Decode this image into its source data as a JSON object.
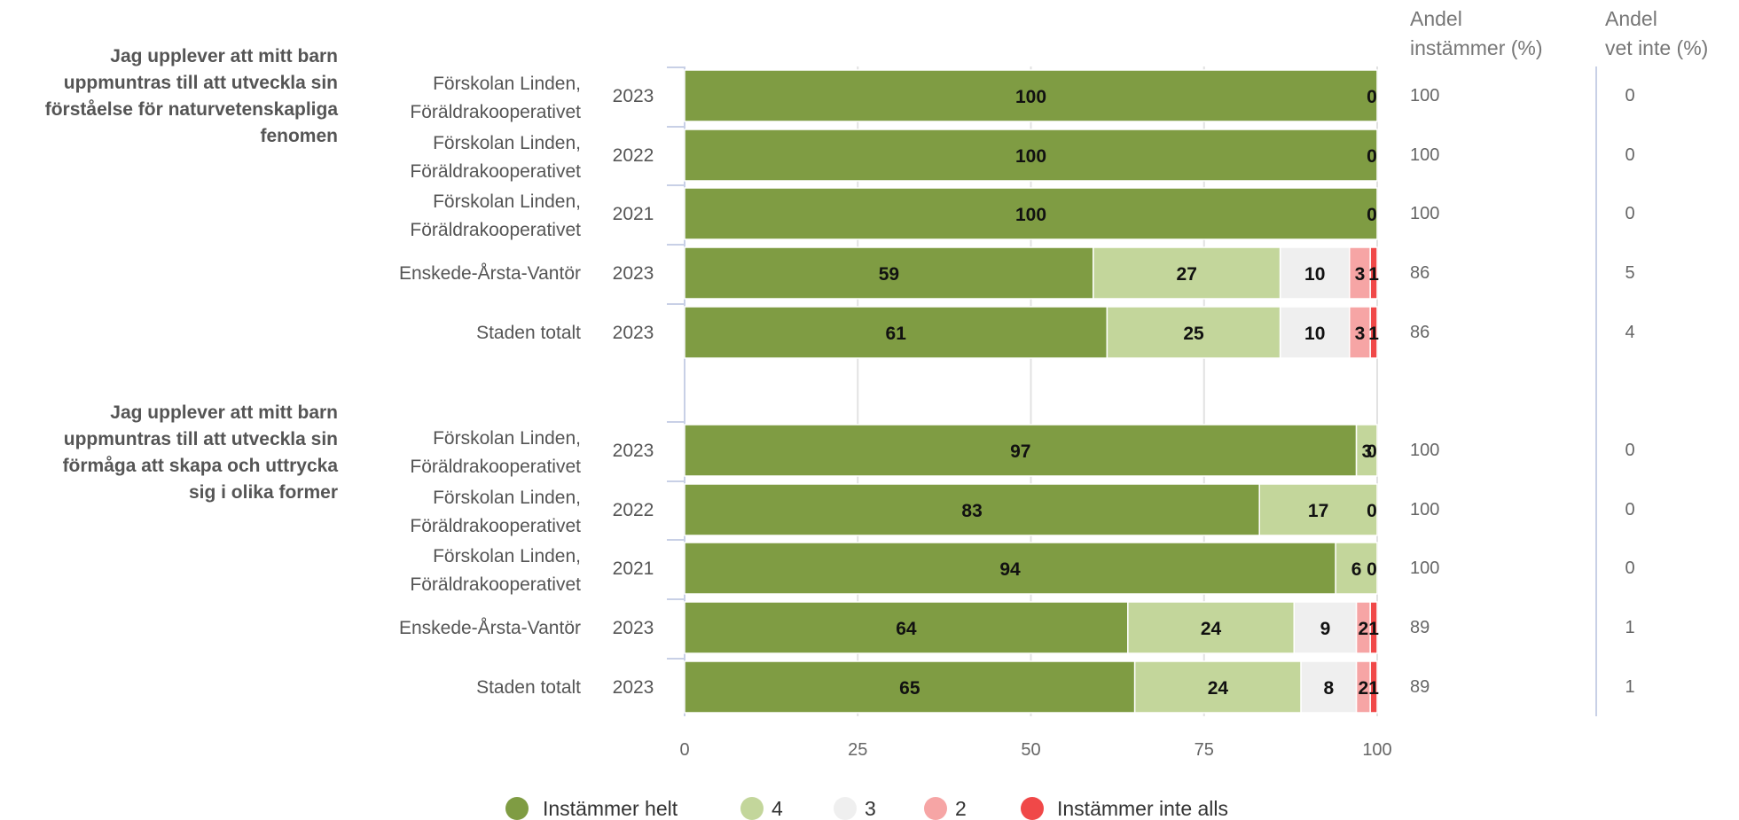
{
  "headers": {
    "agree_line1": "Andel",
    "agree_line2": "instämmer (%)",
    "dontknow_line1": "Andel",
    "dontknow_line2": "vet inte (%)"
  },
  "chart_data": {
    "type": "bar",
    "orientation": "horizontal-stacked",
    "xlim": [
      0,
      100
    ],
    "xticks": [
      0,
      25,
      50,
      75,
      100
    ],
    "grid": true,
    "legend_position": "bottom",
    "series": [
      {
        "name": "Instämmer helt",
        "color": "#7f9c43"
      },
      {
        "name": "4",
        "color": "#c3d69b"
      },
      {
        "name": "3",
        "color": "#efefef"
      },
      {
        "name": "2",
        "color": "#f6a5a5"
      },
      {
        "name": "Instämmer inte alls",
        "color": "#f04848"
      }
    ],
    "groups": [
      {
        "question": [
          "Jag upplever att mitt barn",
          "uppmuntras till att utveckla sin",
          "förståelse för naturvetenskapliga",
          "fenomen"
        ],
        "rows": [
          {
            "label": [
              "Förskolan Linden,",
              "Föräldrakooperativet"
            ],
            "year": "2023",
            "values": [
              100,
              0,
              0,
              0,
              0
            ],
            "labels": [
              "100",
              "",
              "",
              "",
              "0"
            ],
            "agree": "100",
            "dont_know": "0"
          },
          {
            "label": [
              "Förskolan Linden,",
              "Föräldrakooperativet"
            ],
            "year": "2022",
            "values": [
              100,
              0,
              0,
              0,
              0
            ],
            "labels": [
              "100",
              "",
              "",
              "",
              "0"
            ],
            "agree": "100",
            "dont_know": "0"
          },
          {
            "label": [
              "Förskolan Linden,",
              "Föräldrakooperativet"
            ],
            "year": "2021",
            "values": [
              100,
              0,
              0,
              0,
              0
            ],
            "labels": [
              "100",
              "",
              "",
              "",
              "0"
            ],
            "agree": "100",
            "dont_know": "0"
          },
          {
            "label": [
              "Enskede-Årsta-Vantör"
            ],
            "year": "2023",
            "values": [
              59,
              27,
              10,
              3,
              1
            ],
            "labels": [
              "59",
              "27",
              "10",
              "3",
              "1"
            ],
            "agree": "86",
            "dont_know": "5"
          },
          {
            "label": [
              "Staden totalt"
            ],
            "year": "2023",
            "values": [
              61,
              25,
              10,
              3,
              1
            ],
            "labels": [
              "61",
              "25",
              "10",
              "3",
              "1"
            ],
            "agree": "86",
            "dont_know": "4"
          }
        ]
      },
      {
        "question": [
          "Jag upplever att mitt barn",
          "uppmuntras till att utveckla sin",
          "förmåga att skapa och uttrycka",
          "sig i olika former"
        ],
        "rows": [
          {
            "label": [
              "Förskolan Linden,",
              "Föräldrakooperativet"
            ],
            "year": "2023",
            "values": [
              97,
              3,
              0,
              0,
              0
            ],
            "labels": [
              "97",
              "3",
              "0",
              "",
              ""
            ],
            "agree": "100",
            "dont_know": "0"
          },
          {
            "label": [
              "Förskolan Linden,",
              "Föräldrakooperativet"
            ],
            "year": "2022",
            "values": [
              83,
              17,
              0,
              0,
              0
            ],
            "labels": [
              "83",
              "17",
              "0",
              "",
              ""
            ],
            "agree": "100",
            "dont_know": "0"
          },
          {
            "label": [
              "Förskolan Linden,",
              "Föräldrakooperativet"
            ],
            "year": "2021",
            "values": [
              94,
              6,
              0,
              0,
              0
            ],
            "labels": [
              "94",
              "6",
              "0",
              "",
              ""
            ],
            "agree": "100",
            "dont_know": "0"
          },
          {
            "label": [
              "Enskede-Årsta-Vantör"
            ],
            "year": "2023",
            "values": [
              64,
              24,
              9,
              2,
              1
            ],
            "labels": [
              "64",
              "24",
              "9",
              "2",
              "1"
            ],
            "agree": "89",
            "dont_know": "1"
          },
          {
            "label": [
              "Staden totalt"
            ],
            "year": "2023",
            "values": [
              65,
              24,
              8,
              2,
              1
            ],
            "labels": [
              "65",
              "24",
              "8",
              "2",
              "1"
            ],
            "agree": "89",
            "dont_know": "1"
          }
        ]
      }
    ]
  }
}
